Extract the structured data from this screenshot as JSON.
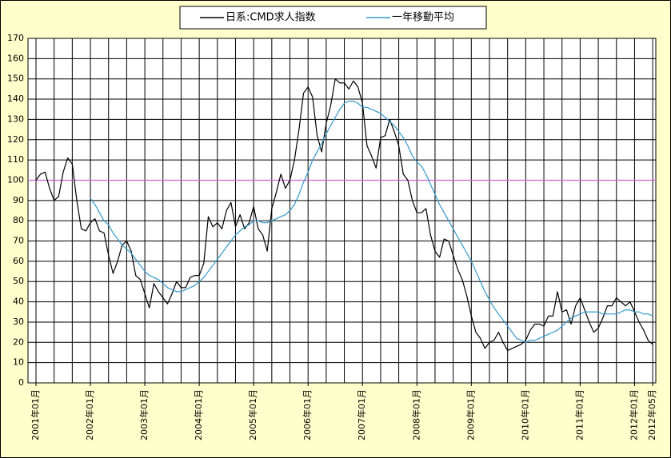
{
  "chart_data": {
    "type": "line",
    "categories": [
      "2001年01月",
      null,
      null,
      null,
      null,
      null,
      null,
      null,
      null,
      null,
      null,
      null,
      "2002年01月",
      null,
      null,
      null,
      null,
      null,
      null,
      null,
      null,
      null,
      null,
      null,
      "2003年01月",
      null,
      null,
      null,
      null,
      null,
      null,
      null,
      null,
      null,
      null,
      null,
      "2004年01月",
      null,
      null,
      null,
      null,
      null,
      null,
      null,
      null,
      null,
      null,
      null,
      "2005年01月",
      null,
      null,
      null,
      null,
      null,
      null,
      null,
      null,
      null,
      null,
      null,
      "2006年01月",
      null,
      null,
      null,
      null,
      null,
      null,
      null,
      null,
      null,
      null,
      null,
      "2007年01月",
      null,
      null,
      null,
      null,
      null,
      null,
      null,
      null,
      null,
      null,
      null,
      "2008年01月",
      null,
      null,
      null,
      null,
      null,
      null,
      null,
      null,
      null,
      null,
      null,
      "2009年01月",
      null,
      null,
      null,
      null,
      null,
      null,
      null,
      null,
      null,
      null,
      null,
      "2010年01月",
      null,
      null,
      null,
      null,
      null,
      null,
      null,
      null,
      null,
      null,
      null,
      "2011年01月",
      null,
      null,
      null,
      null,
      null,
      null,
      null,
      null,
      null,
      null,
      null,
      "2012年01月",
      null,
      null,
      null,
      "2012年05月"
    ],
    "series": [
      {
        "name": "日系:CMD求人指数",
        "color": "#000000",
        "values": [
          100,
          103,
          104,
          96,
          90,
          92,
          104,
          111,
          108,
          90,
          76,
          75,
          79,
          81,
          75,
          74,
          63,
          54,
          60,
          68,
          70,
          65,
          53,
          51,
          44,
          37,
          49,
          45,
          42,
          39,
          44,
          50,
          47,
          47,
          52,
          53,
          53,
          59,
          82,
          77,
          79,
          76,
          85,
          89,
          77,
          83,
          76,
          79,
          87,
          76,
          73,
          65,
          86,
          94,
          103,
          96,
          100,
          110,
          125,
          143,
          146,
          141,
          122,
          114,
          128,
          137,
          150,
          148,
          148,
          145,
          149,
          146,
          138,
          117,
          112,
          106,
          121,
          122,
          130,
          124,
          117,
          103,
          100,
          90,
          84,
          84,
          86,
          73,
          65,
          62,
          71,
          70,
          63,
          56,
          51,
          43,
          33,
          25,
          22,
          17,
          20,
          21,
          25,
          20,
          16,
          17,
          18,
          19,
          21,
          26,
          29,
          29,
          28,
          33,
          33,
          45,
          35,
          36,
          29,
          38,
          42,
          36,
          30,
          25,
          27,
          32,
          38,
          38,
          42,
          40,
          38,
          40,
          35,
          30,
          26,
          21,
          19
        ]
      },
      {
        "name": "一年移動平均",
        "color": "#3399cc",
        "values": [
          null,
          null,
          null,
          null,
          null,
          null,
          null,
          null,
          null,
          null,
          null,
          null,
          91,
          88,
          84,
          80,
          78,
          74,
          71,
          68,
          66,
          64,
          61,
          58,
          55,
          53,
          52,
          51,
          49,
          47,
          46,
          45,
          45,
          46,
          47,
          48,
          50,
          52,
          55,
          58,
          61,
          64,
          67,
          70,
          73,
          75,
          77,
          78,
          80,
          80,
          79,
          79,
          80,
          81,
          82,
          83,
          85,
          88,
          93,
          99,
          104,
          110,
          114,
          118,
          123,
          127,
          131,
          135,
          138,
          139,
          139,
          138,
          136,
          136,
          135,
          134,
          133,
          131,
          129,
          127,
          124,
          121,
          117,
          112,
          109,
          107,
          103,
          98,
          93,
          88,
          84,
          80,
          76,
          72,
          68,
          64,
          60,
          55,
          50,
          45,
          41,
          37,
          34,
          31,
          28,
          25,
          22,
          21,
          20,
          21,
          21,
          22,
          23,
          24,
          25,
          26,
          28,
          30,
          32,
          33,
          34,
          35,
          35,
          35,
          35,
          34,
          34,
          34,
          34,
          35,
          36,
          36,
          35,
          35,
          34,
          34,
          33
        ]
      }
    ],
    "reference_line": {
      "value": 100,
      "color": "#cc66cc"
    },
    "ylim": [
      0,
      170
    ],
    "yticks": [
      0,
      10,
      20,
      30,
      40,
      50,
      60,
      70,
      80,
      90,
      100,
      110,
      120,
      130,
      140,
      150,
      160,
      170
    ],
    "grid": true,
    "legend": "top"
  }
}
